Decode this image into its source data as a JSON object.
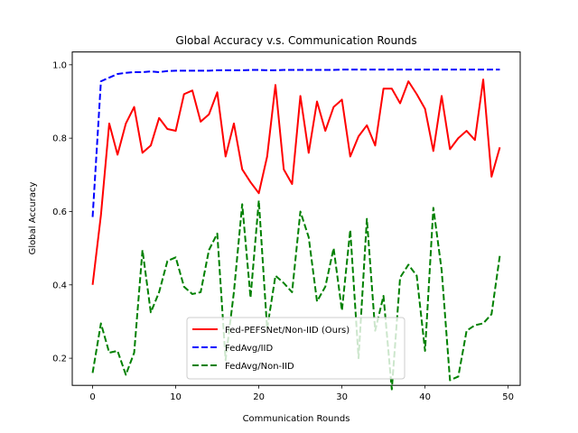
{
  "chart_data": {
    "type": "line",
    "title": "Global Accuracy v.s. Communication Rounds",
    "xlabel": "Communication Rounds",
    "ylabel": "Global Accuracy",
    "xlim": [
      -2.45,
      51.45
    ],
    "ylim": [
      0.126,
      1.035
    ],
    "xticks": [
      0,
      10,
      20,
      30,
      40,
      50
    ],
    "yticks": [
      0.2,
      0.4,
      0.6,
      0.8,
      1.0
    ],
    "ytick_labels": [
      "0.2",
      "0.4",
      "0.6",
      "0.8",
      "1.0"
    ],
    "grid": false,
    "legend_placement": "lower-center",
    "x": [
      0,
      1,
      2,
      3,
      4,
      5,
      6,
      7,
      8,
      9,
      10,
      11,
      12,
      13,
      14,
      15,
      16,
      17,
      18,
      19,
      20,
      21,
      22,
      23,
      24,
      25,
      26,
      27,
      28,
      29,
      30,
      31,
      32,
      33,
      34,
      35,
      36,
      37,
      38,
      39,
      40,
      41,
      42,
      43,
      44,
      45,
      46,
      47,
      48,
      49
    ],
    "series": [
      {
        "name": "Fed-PEFSNet/Non-IID (Ours)",
        "color": "#ff0000",
        "style": "solid",
        "values": [
          0.4,
          0.59,
          0.84,
          0.755,
          0.84,
          0.885,
          0.76,
          0.78,
          0.855,
          0.825,
          0.82,
          0.92,
          0.93,
          0.845,
          0.865,
          0.925,
          0.75,
          0.84,
          0.715,
          0.68,
          0.65,
          0.75,
          0.945,
          0.715,
          0.675,
          0.915,
          0.76,
          0.9,
          0.82,
          0.885,
          0.905,
          0.75,
          0.805,
          0.835,
          0.78,
          0.935,
          0.935,
          0.895,
          0.955,
          0.92,
          0.88,
          0.765,
          0.915,
          0.77,
          0.8,
          0.82,
          0.795,
          0.96,
          0.695,
          0.775
        ]
      },
      {
        "name": "FedAvg/IID",
        "color": "#0000ff",
        "style": "dashed",
        "values": [
          0.585,
          0.955,
          0.965,
          0.975,
          0.978,
          0.98,
          0.98,
          0.982,
          0.98,
          0.983,
          0.984,
          0.984,
          0.984,
          0.984,
          0.984,
          0.985,
          0.985,
          0.985,
          0.985,
          0.986,
          0.986,
          0.985,
          0.985,
          0.986,
          0.986,
          0.986,
          0.986,
          0.986,
          0.986,
          0.986,
          0.987,
          0.987,
          0.987,
          0.987,
          0.987,
          0.987,
          0.987,
          0.987,
          0.987,
          0.987,
          0.987,
          0.987,
          0.987,
          0.987,
          0.987,
          0.987,
          0.987,
          0.987,
          0.987,
          0.987
        ]
      },
      {
        "name": "FedAvg/Non-IID",
        "color": "#008000",
        "style": "dashed",
        "values": [
          0.16,
          0.295,
          0.215,
          0.22,
          0.155,
          0.215,
          0.495,
          0.325,
          0.38,
          0.465,
          0.475,
          0.395,
          0.375,
          0.38,
          0.495,
          0.54,
          0.195,
          0.38,
          0.62,
          0.365,
          0.63,
          0.28,
          0.425,
          0.405,
          0.38,
          0.6,
          0.53,
          0.355,
          0.395,
          0.5,
          0.33,
          0.55,
          0.2,
          0.58,
          0.275,
          0.37,
          0.115,
          0.42,
          0.455,
          0.425,
          0.22,
          0.61,
          0.44,
          0.14,
          0.15,
          0.275,
          0.29,
          0.295,
          0.32,
          0.48
        ]
      }
    ]
  }
}
